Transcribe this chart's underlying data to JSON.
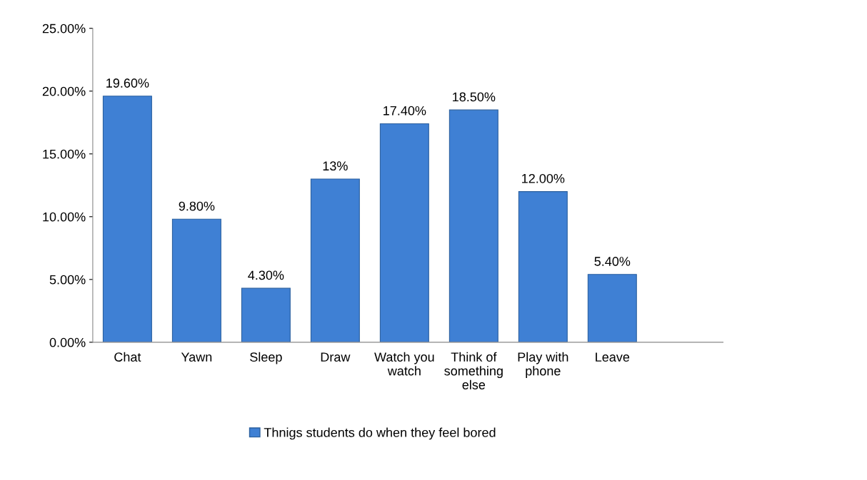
{
  "chart_data": {
    "type": "bar",
    "categories": [
      "Chat",
      "Yawn",
      "Sleep",
      "Draw",
      "Watch you watch",
      "Think of something else",
      "Play with phone",
      "Leave",
      null
    ],
    "series": [
      {
        "name": "Thnigs students do when they feel bored",
        "color": "#3f80d4",
        "values": [
          19.6,
          9.8,
          4.3,
          13,
          17.4,
          18.5,
          12.0,
          5.4,
          null
        ]
      }
    ],
    "value_labels": [
      "19.60%",
      "9.80%",
      "4.30%",
      "13%",
      "17.40%",
      "18.50%",
      "12.00%",
      "5.40%",
      null
    ],
    "ylim": [
      0,
      25
    ],
    "yticks": [
      {
        "value": 0,
        "label": "0.00%"
      },
      {
        "value": 5,
        "label": "5.00%"
      },
      {
        "value": 10,
        "label": "10.00%"
      },
      {
        "value": 15,
        "label": "15.00%"
      },
      {
        "value": 20,
        "label": "20.00%"
      },
      {
        "value": 25,
        "label": "25.00%"
      }
    ],
    "grid": false,
    "legend": "bottom"
  }
}
